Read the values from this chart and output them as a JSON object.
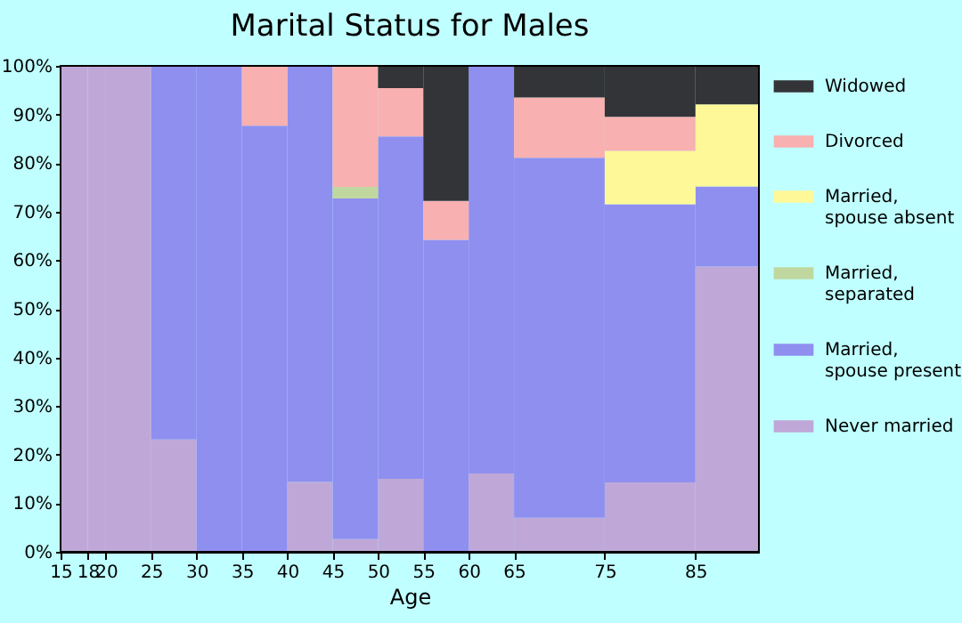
{
  "chart_data": {
    "type": "bar",
    "stacked": true,
    "title": "Marital Status for Males",
    "xlabel": "Age",
    "x": [
      16.5,
      19,
      22.5,
      27.5,
      32.5,
      37.5,
      42.5,
      47.5,
      52.5,
      57.5,
      62.5,
      70,
      80,
      88.5
    ],
    "xlim": [
      15,
      92
    ],
    "xticks": [
      15,
      18,
      20,
      25,
      30,
      35,
      40,
      45,
      50,
      55,
      60,
      65,
      75,
      85
    ],
    "ylim": [
      0,
      100
    ],
    "yticks": [
      {
        "value": 0,
        "label": "0%"
      },
      {
        "value": 10,
        "label": "10%"
      },
      {
        "value": 20,
        "label": "20%"
      },
      {
        "value": 30,
        "label": "30%"
      },
      {
        "value": 40,
        "label": "40%"
      },
      {
        "value": 50,
        "label": "50%"
      },
      {
        "value": 60,
        "label": "60%"
      },
      {
        "value": 70,
        "label": "70%"
      },
      {
        "value": 80,
        "label": "80%"
      },
      {
        "value": 90,
        "label": "90%"
      },
      {
        "value": 100,
        "label": "100%"
      }
    ],
    "grid": false,
    "legend": "right",
    "series": [
      {
        "name": "Never married",
        "color": "#bfa8d8",
        "values": [
          100,
          100,
          100,
          23.1,
          0,
          0,
          14.4,
          2.6,
          15.0,
          0,
          16.1,
          7.0,
          14.3,
          58.7
        ]
      },
      {
        "name": "Married, spouse present",
        "color": "#8f8ff0",
        "values": [
          0,
          0,
          0,
          76.9,
          100,
          87.7,
          85.6,
          70.1,
          70.5,
          64.2,
          83.9,
          74.1,
          57.2,
          16.5
        ]
      },
      {
        "name": "Married, separated",
        "color": "#c0d8a0",
        "values": [
          0,
          0,
          0,
          0,
          0,
          0,
          0,
          2.4,
          0,
          0,
          0,
          0,
          0,
          0
        ]
      },
      {
        "name": "Married, spouse absent",
        "color": "#fff898",
        "values": [
          0,
          0,
          0,
          0,
          0,
          0,
          0,
          0,
          0,
          0,
          0,
          0,
          11.0,
          16.9
        ]
      },
      {
        "name": "Divorced",
        "color": "#f8b0b0",
        "values": [
          0,
          0,
          0,
          0,
          0,
          12.3,
          0,
          24.9,
          9.9,
          8.0,
          0,
          12.4,
          7.0,
          0
        ]
      },
      {
        "name": "Widowed",
        "color": "#333438",
        "values": [
          0,
          0,
          0,
          0,
          0,
          0,
          0,
          0,
          4.6,
          27.8,
          0,
          6.5,
          10.5,
          7.9
        ]
      }
    ]
  }
}
